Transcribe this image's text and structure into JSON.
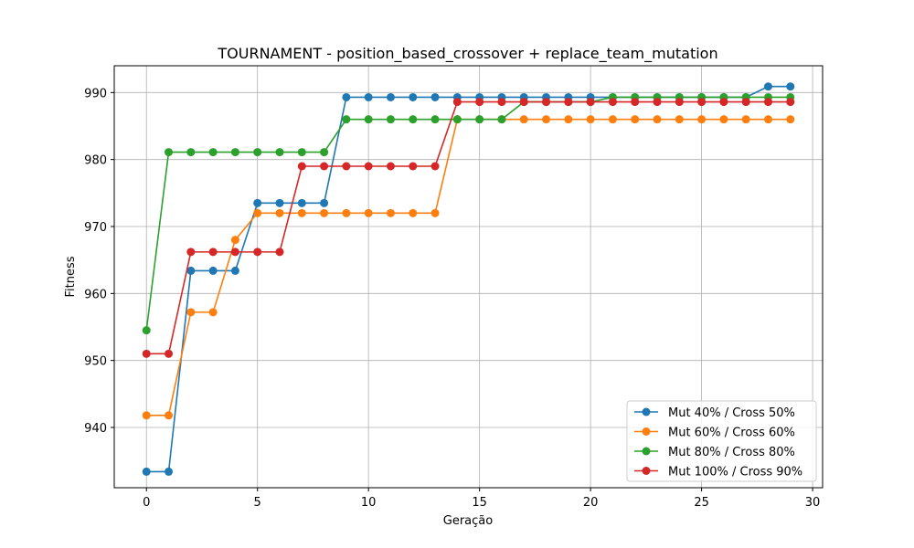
{
  "chart_data": {
    "type": "line",
    "title": "TOURNAMENT - position_based_crossover + replace_team_mutation",
    "xlabel": "Geração",
    "ylabel": "Fitness",
    "xlim": [
      -1.45,
      30.45
    ],
    "ylim": [
      931,
      994
    ],
    "xticks": [
      0,
      5,
      10,
      15,
      20,
      25,
      30
    ],
    "yticks": [
      940,
      950,
      960,
      970,
      980,
      990
    ],
    "grid": true,
    "legend_position": "lower-right",
    "x": [
      0,
      1,
      2,
      3,
      4,
      5,
      6,
      7,
      8,
      9,
      10,
      11,
      12,
      13,
      14,
      15,
      16,
      17,
      18,
      19,
      20,
      21,
      22,
      23,
      24,
      25,
      26,
      27,
      28,
      29
    ],
    "series": [
      {
        "name": "Mut 40% / Cross 50%",
        "color": "#1f77b4",
        "values": [
          933.4,
          933.4,
          963.4,
          963.4,
          963.4,
          973.5,
          973.5,
          973.5,
          973.5,
          989.3,
          989.3,
          989.3,
          989.3,
          989.3,
          989.3,
          989.3,
          989.3,
          989.3,
          989.3,
          989.3,
          989.3,
          989.3,
          989.3,
          989.3,
          989.3,
          989.3,
          989.3,
          989.3,
          990.9,
          990.9
        ]
      },
      {
        "name": "Mut 60% / Cross 60%",
        "color": "#ff7f0e",
        "values": [
          941.8,
          941.8,
          957.2,
          957.2,
          968.0,
          972.0,
          972.0,
          972.0,
          972.0,
          972.0,
          972.0,
          972.0,
          972.0,
          972.0,
          986.0,
          986.0,
          986.0,
          986.0,
          986.0,
          986.0,
          986.0,
          986.0,
          986.0,
          986.0,
          986.0,
          986.0,
          986.0,
          986.0,
          986.0,
          986.0
        ]
      },
      {
        "name": "Mut 80% / Cross 80%",
        "color": "#2ca02c",
        "values": [
          954.5,
          981.1,
          981.1,
          981.1,
          981.1,
          981.1,
          981.1,
          981.1,
          981.1,
          986.0,
          986.0,
          986.0,
          986.0,
          986.0,
          986.0,
          986.0,
          986.0,
          988.6,
          988.6,
          988.6,
          988.6,
          989.3,
          989.3,
          989.3,
          989.3,
          989.3,
          989.3,
          989.3,
          989.3,
          989.3
        ]
      },
      {
        "name": "Mut 100% / Cross 90%",
        "color": "#d62728",
        "values": [
          951.0,
          951.0,
          966.2,
          966.2,
          966.2,
          966.2,
          966.2,
          979.0,
          979.0,
          979.0,
          979.0,
          979.0,
          979.0,
          979.0,
          988.6,
          988.6,
          988.6,
          988.6,
          988.6,
          988.6,
          988.6,
          988.6,
          988.6,
          988.6,
          988.6,
          988.6,
          988.6,
          988.6,
          988.6,
          988.6
        ]
      }
    ]
  }
}
